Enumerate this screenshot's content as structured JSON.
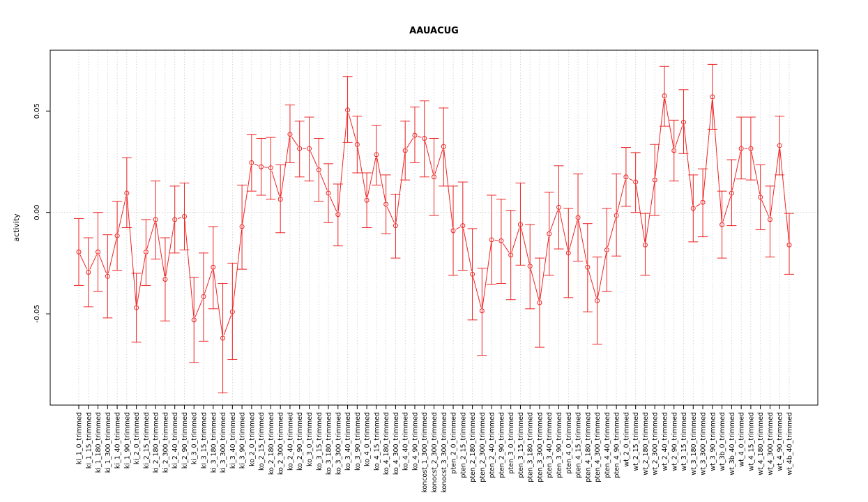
{
  "chart_data": {
    "type": "line",
    "title": "AAUACUG",
    "xlabel": "",
    "ylabel": "activity",
    "ylim": [
      -0.095,
      0.08
    ],
    "y_ticks": [
      -0.05,
      0.0,
      0.05
    ],
    "y_tick_labels": [
      "-0.05",
      "0.00",
      "0.05"
    ],
    "grid": true,
    "colors": {
      "series": "#ee2222",
      "grid": "#cccccc",
      "axis": "#000000"
    },
    "categories": [
      "ki_1_0_trimmed",
      "ki_1_15_trimmed",
      "ki_1_180_trimmed",
      "ki_1_300_trimmed",
      "ki_1_40_trimmed",
      "ki_1_90_trimmed",
      "ki_2_0_trimmed",
      "ki_2_15_trimmed",
      "ki_2_180_trimmed",
      "ki_2_300_trimmed",
      "ki_2_40_trimmed",
      "ki_2_90_trimmed",
      "ki_3_0_trimmed",
      "ki_3_15_trimmed",
      "ki_3_180_trimmed",
      "ki_3_300_trimmed",
      "ki_3_40_trimmed",
      "ki_3_90_trimmed",
      "ko_2_0_trimmed",
      "ko_2_15_trimmed",
      "ko_2_180_trimmed",
      "ko_2_300_trimmed",
      "ko_2_40_trimmed",
      "ko_2_90_trimmed",
      "ko_3_0_trimmed",
      "ko_3_15_trimmed",
      "ko_3_180_trimmed",
      "ko_3_300_trimmed",
      "ko_3_40_trimmed",
      "ko_3_90_trimmed",
      "ko_4_0_trimmed",
      "ko_4_15_trimmed",
      "ko_4_180_trimmed",
      "ko_4_300_trimmed",
      "ko_4_40_trimmed",
      "ko_4_90_trimmed",
      "koncost_1_300_trimmed",
      "konocst_2_300_trimmed",
      "konocst_3_300_trimmed",
      "pten_2_0_trimmed",
      "pten_2_15_trimmed",
      "pten_2_180_trimmed",
      "pten_2_300_trimmed",
      "pten_2_40_trimmed",
      "pten_2_90_trimmed",
      "pten_3_0_trimmed",
      "pten_3_15_trimmed",
      "pten_3_180_trimmed",
      "pten_3_300_trimmed",
      "pten_3_40_trimmed",
      "pten_3_90_trimmed",
      "pten_4_0_trimmed",
      "pten_4_15_trimmed",
      "pten_4_180_trimmed",
      "pten_4_300_trimmed",
      "pten_4_40_trimmed",
      "pten_4_90_trimmed",
      "wt_2_0_trimmed",
      "wt_2_15_trimmed",
      "wt_2_180_trimmed",
      "wt_2_300_trimmed",
      "wt_2_40_trimmed",
      "wt_2_90_trimmed",
      "wt_3_15_trimmed",
      "wt_3_180_trimmed",
      "wt_3_300_trimmed",
      "wt_3_90_trimmed",
      "wt_3b_0_trimmed",
      "wt_3b_40_trimmed",
      "wt_4_0_trimmed",
      "wt_4_15_trimmed",
      "wt_4_180_trimmed",
      "wt_4_300_trimmed",
      "wt_4_90_trimmed",
      "wt_4b_40_trimmed"
    ],
    "series": [
      {
        "values": [
          -0.0195,
          -0.0295,
          -0.0195,
          -0.0315,
          -0.0115,
          0.0095,
          -0.047,
          -0.0195,
          -0.0035,
          -0.033,
          -0.0035,
          -0.002,
          -0.053,
          -0.0415,
          -0.027,
          -0.062,
          -0.049,
          -0.007,
          0.0245,
          0.0225,
          0.022,
          0.0065,
          0.0385,
          0.0315,
          0.0315,
          0.021,
          0.0095,
          -0.001,
          0.0505,
          0.0335,
          0.006,
          0.0285,
          0.004,
          -0.0065,
          0.0305,
          0.038,
          0.0365,
          0.0175,
          0.0325,
          -0.009,
          -0.0065,
          -0.0305,
          -0.0485,
          -0.0135,
          -0.014,
          -0.021,
          -0.006,
          -0.0265,
          -0.0445,
          -0.0105,
          0.0025,
          -0.02,
          -0.0025,
          -0.027,
          -0.0435,
          -0.0185,
          -0.0015,
          0.0175,
          0.015,
          -0.016,
          0.016,
          0.0575,
          0.0305,
          0.0445,
          0.002,
          0.005,
          0.057,
          -0.006,
          0.0095,
          0.0315,
          0.0315,
          0.0075,
          -0.0035,
          0.033,
          -0.016
        ],
        "error_low": [
          -0.036,
          -0.0465,
          -0.039,
          -0.052,
          -0.0285,
          -0.0075,
          -0.064,
          -0.036,
          -0.023,
          -0.0535,
          -0.02,
          -0.0185,
          -0.074,
          -0.0635,
          -0.0475,
          -0.089,
          -0.0725,
          -0.028,
          0.0105,
          0.0085,
          0.0065,
          -0.01,
          0.0245,
          0.0175,
          0.0155,
          0.0055,
          -0.005,
          -0.0165,
          0.0345,
          0.0195,
          -0.0075,
          0.0135,
          -0.0105,
          -0.0225,
          0.016,
          0.0245,
          0.0175,
          -0.0015,
          0.013,
          -0.031,
          -0.0285,
          -0.053,
          -0.0705,
          -0.0355,
          -0.035,
          -0.043,
          -0.026,
          -0.0475,
          -0.0665,
          -0.031,
          -0.018,
          -0.042,
          -0.024,
          -0.049,
          -0.065,
          -0.039,
          -0.0215,
          0.003,
          0.0,
          -0.031,
          -0.0015,
          0.0425,
          0.0155,
          0.029,
          -0.0145,
          -0.012,
          0.041,
          -0.0225,
          -0.0065,
          0.0165,
          0.016,
          -0.0085,
          -0.022,
          0.0185,
          -0.0305
        ],
        "error_high": [
          -0.003,
          -0.0125,
          0.0,
          -0.011,
          0.0055,
          0.027,
          -0.03,
          -0.0035,
          0.0155,
          -0.0125,
          0.013,
          0.0145,
          -0.032,
          -0.02,
          -0.007,
          -0.035,
          -0.025,
          0.0135,
          0.0385,
          0.0365,
          0.037,
          0.0235,
          0.053,
          0.045,
          0.047,
          0.0365,
          0.024,
          0.014,
          0.067,
          0.0475,
          0.0195,
          0.043,
          0.0185,
          0.009,
          0.045,
          0.052,
          0.055,
          0.0365,
          0.0515,
          0.013,
          0.015,
          -0.008,
          -0.0275,
          0.0085,
          0.0065,
          0.001,
          0.0145,
          -0.006,
          -0.0225,
          0.01,
          0.023,
          0.002,
          0.019,
          -0.0055,
          -0.022,
          0.002,
          0.019,
          0.032,
          0.0295,
          -0.0005,
          0.0335,
          0.072,
          0.0455,
          0.0605,
          0.0185,
          0.0215,
          0.073,
          0.0105,
          0.026,
          0.047,
          0.047,
          0.0235,
          0.013,
          0.0475,
          -0.0005
        ]
      }
    ]
  }
}
